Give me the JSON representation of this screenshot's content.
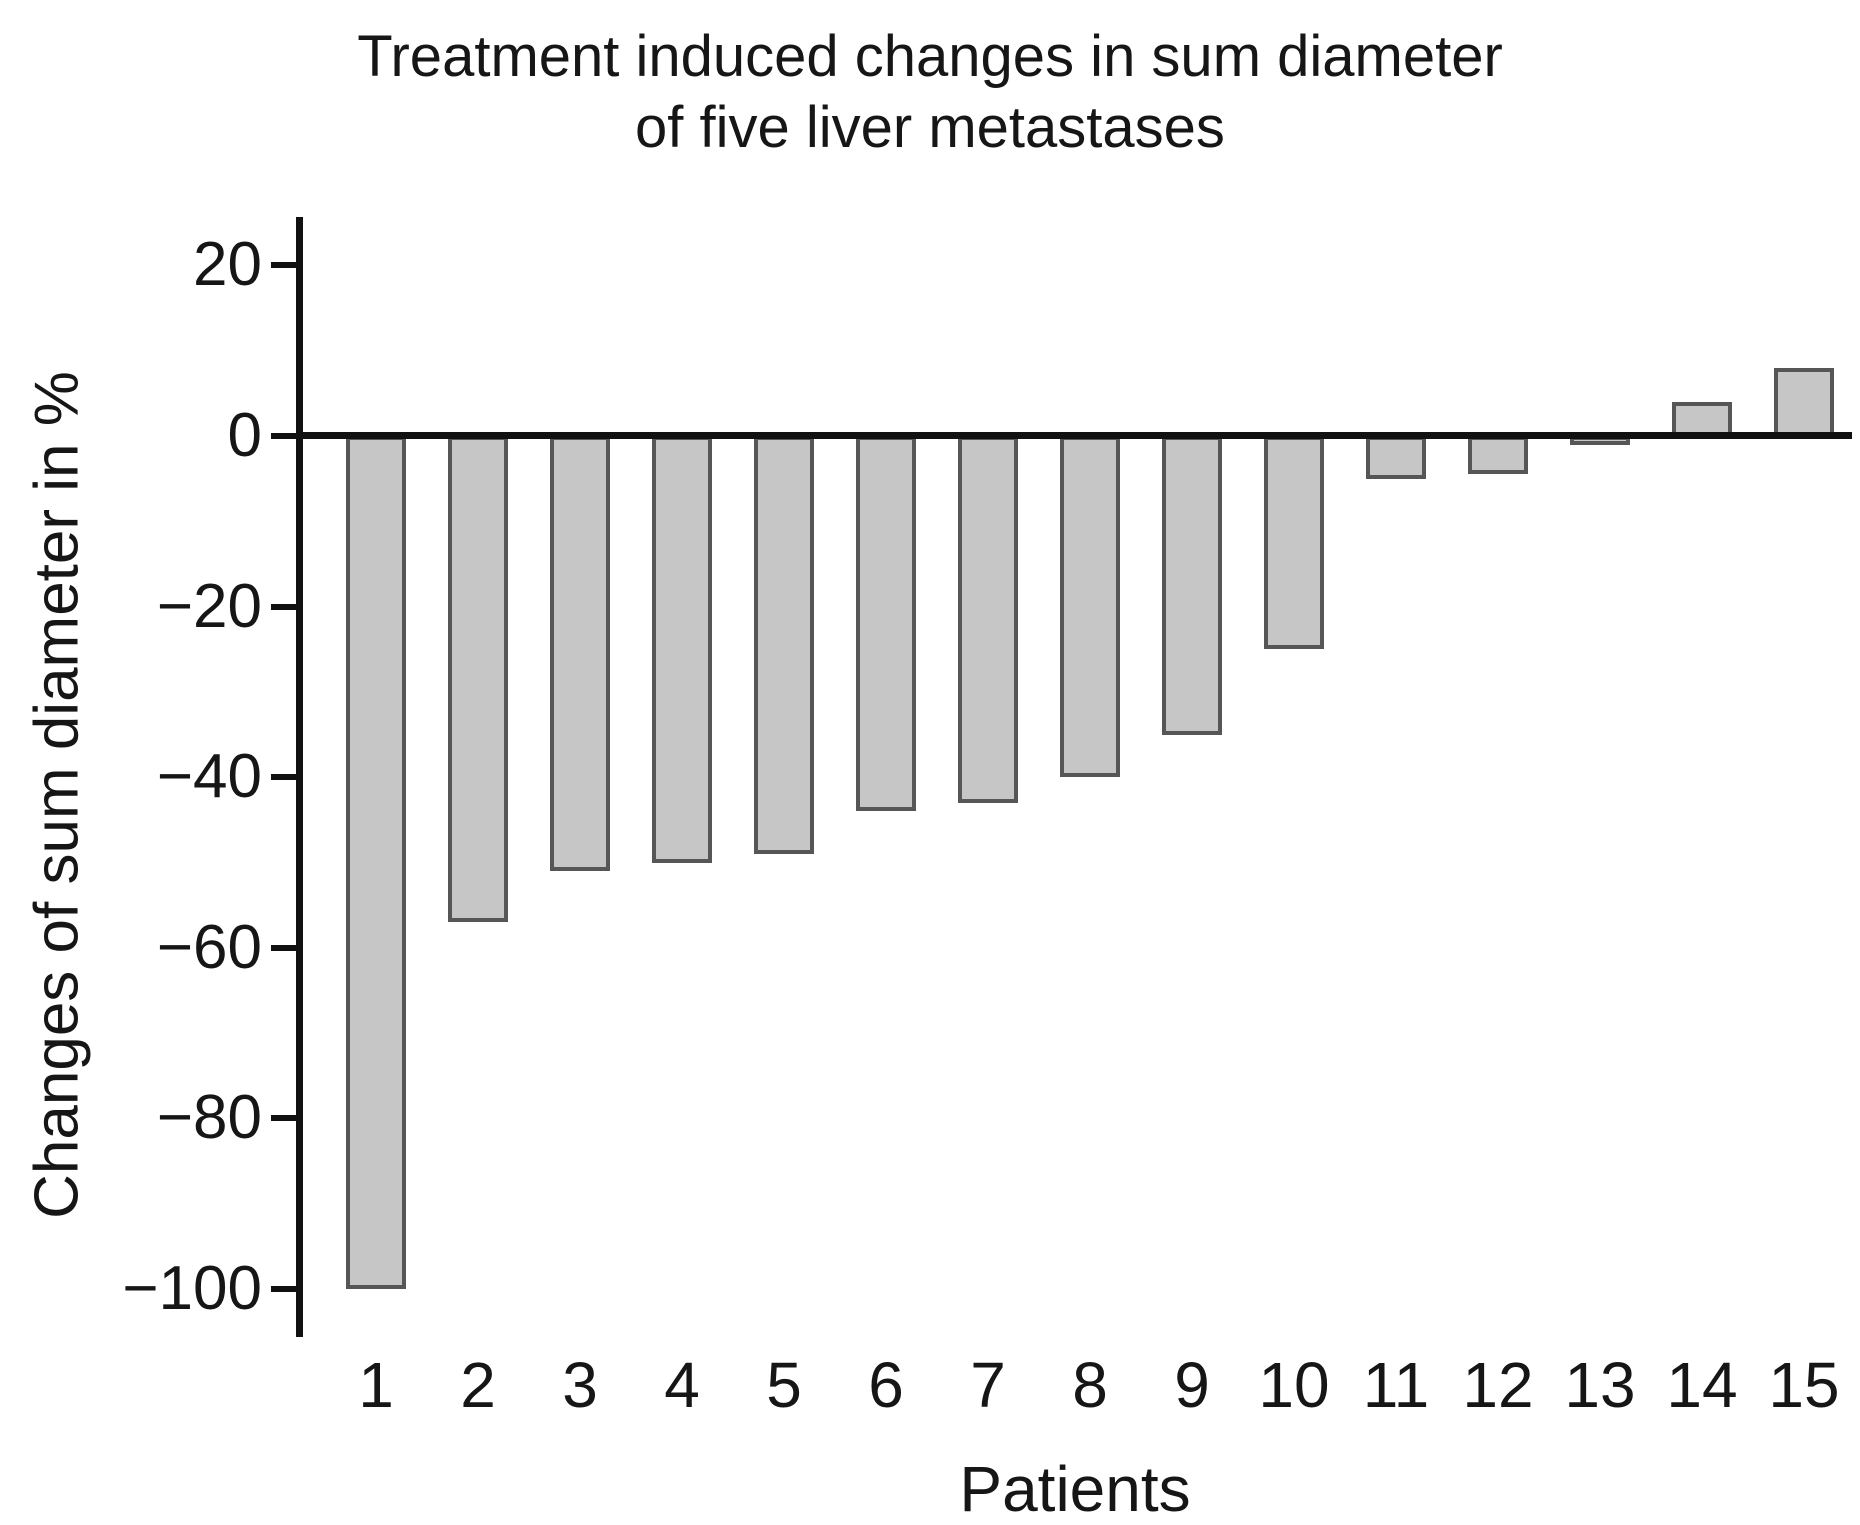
{
  "title": {
    "line1": "Treatment induced changes in sum diameter",
    "line2": "of five liver metastases"
  },
  "y_axis": {
    "label": "Changes of sum diameter in %",
    "ticks": [
      {
        "value": 20,
        "label": "20"
      },
      {
        "value": 0,
        "label": "0"
      },
      {
        "value": -20,
        "label": "−20"
      },
      {
        "value": -40,
        "label": "−40"
      },
      {
        "value": -60,
        "label": "−60"
      },
      {
        "value": -80,
        "label": "−80"
      },
      {
        "value": -100,
        "label": "−100"
      }
    ]
  },
  "x_axis": {
    "label": "Patients",
    "categories": [
      "1",
      "2",
      "3",
      "4",
      "5",
      "6",
      "7",
      "8",
      "9",
      "10",
      "11",
      "12",
      "13",
      "14",
      "15"
    ]
  },
  "colors": {
    "bar_fill": "#c6c6c6",
    "bar_border": "#565656",
    "axis": "#111111",
    "text": "#161616",
    "background": "#ffffff"
  },
  "chart_data": {
    "type": "bar",
    "title": "Treatment induced changes in sum diameter of five liver metastases",
    "xlabel": "Patients",
    "ylabel": "Changes of sum diameter in %",
    "categories": [
      "1",
      "2",
      "3",
      "4",
      "5",
      "6",
      "7",
      "8",
      "9",
      "10",
      "11",
      "12",
      "13",
      "14",
      "15"
    ],
    "values": [
      -100,
      -57,
      -51,
      -50,
      -49,
      -44,
      -43,
      -40,
      -35,
      -25,
      -5,
      -4.5,
      -1,
      4,
      8
    ],
    "ylim": [
      -107,
      26
    ],
    "y_tick_values": [
      20,
      0,
      -20,
      -40,
      -60,
      -80,
      -100
    ],
    "grid": false,
    "legend": null,
    "baseline": 0
  }
}
